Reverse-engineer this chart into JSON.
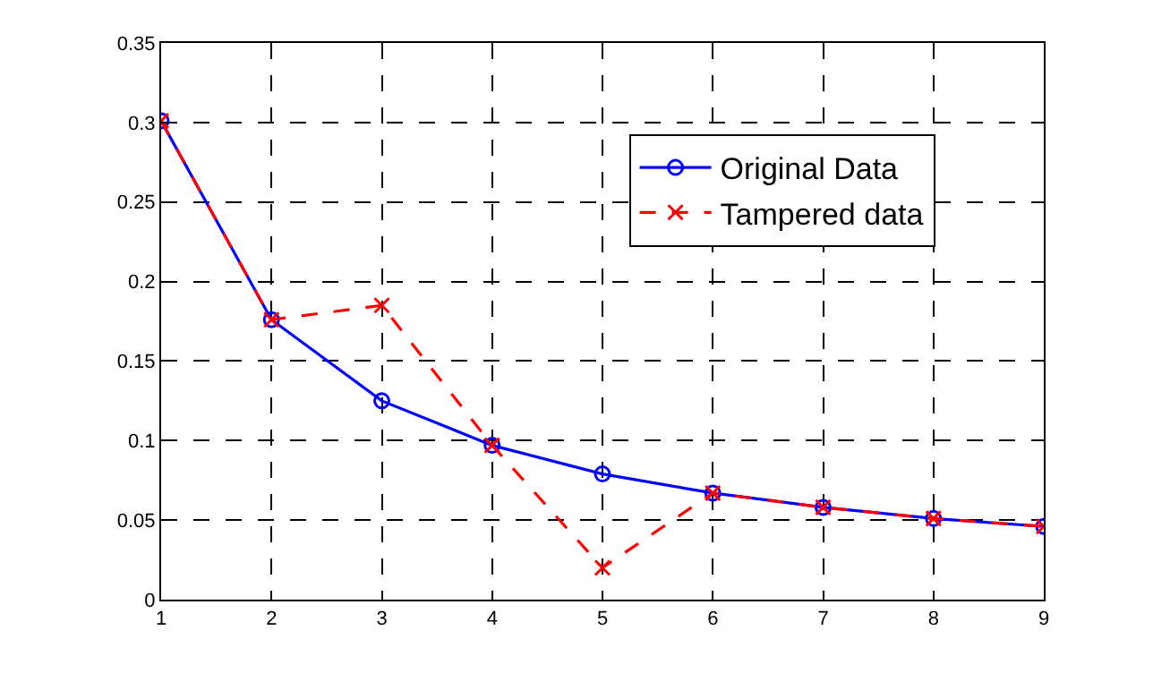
{
  "chart_data": {
    "type": "line",
    "x": [
      1,
      2,
      3,
      4,
      5,
      6,
      7,
      8,
      9
    ],
    "series": [
      {
        "name": "Original Data",
        "color": "#0000ff",
        "marker": "circle",
        "line_style": "solid",
        "values": [
          0.301,
          0.176,
          0.125,
          0.097,
          0.079,
          0.067,
          0.058,
          0.051,
          0.046
        ]
      },
      {
        "name": "Tampered data",
        "color": "#ff0000",
        "marker": "cross",
        "line_style": "dashed",
        "values": [
          0.301,
          0.176,
          0.185,
          0.097,
          0.02,
          0.067,
          0.058,
          0.051,
          0.046
        ]
      }
    ],
    "xlim": [
      1,
      9
    ],
    "xticks": [
      1,
      2,
      3,
      4,
      5,
      6,
      7,
      8,
      9
    ],
    "ylim": [
      0,
      0.35
    ],
    "yticks": [
      0,
      0.05,
      0.1,
      0.15,
      0.2,
      0.25,
      0.3,
      0.35
    ],
    "grid": true,
    "legend": "top right"
  }
}
